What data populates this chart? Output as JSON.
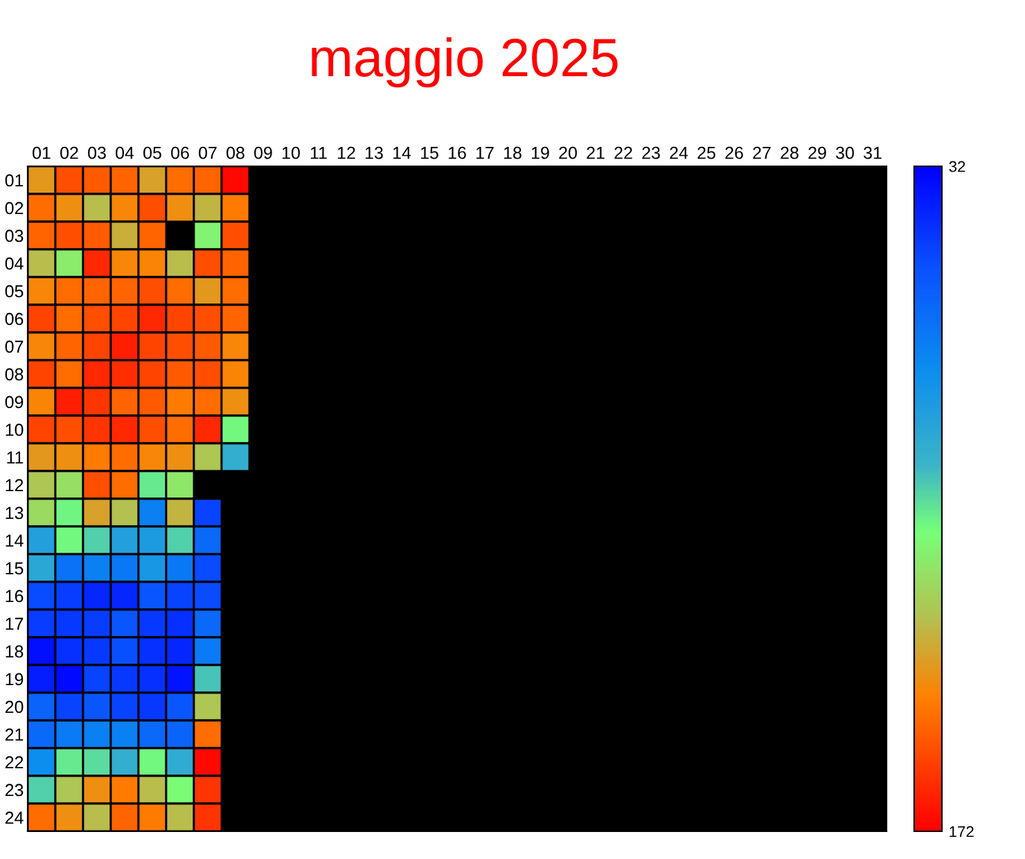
{
  "chart_data": {
    "type": "heatmap",
    "title": "maggio 2025",
    "categories": [
      "01",
      "02",
      "03",
      "04",
      "05",
      "06",
      "07",
      "08",
      "09",
      "10",
      "11",
      "12",
      "13",
      "14",
      "15",
      "16",
      "17",
      "18",
      "19",
      "20",
      "21",
      "22",
      "23",
      "24",
      "25",
      "26",
      "27",
      "28",
      "29",
      "30",
      "31"
    ],
    "y_categories": [
      "01",
      "02",
      "03",
      "04",
      "05",
      "06",
      "07",
      "08",
      "09",
      "10",
      "11",
      "12",
      "13",
      "14",
      "15",
      "16",
      "17",
      "18",
      "19",
      "20",
      "21",
      "22",
      "23",
      "24"
    ],
    "cells": [
      [
        138,
        155,
        152,
        150,
        135,
        148,
        150,
        170,
        null,
        null,
        null,
        null,
        null,
        null,
        null,
        null,
        null,
        null,
        null,
        null,
        null,
        null,
        null,
        null,
        null,
        null,
        null,
        null,
        null,
        null,
        null
      ],
      [
        148,
        140,
        128,
        142,
        155,
        140,
        130,
        145,
        null,
        null,
        null,
        null,
        null,
        null,
        null,
        null,
        null,
        null,
        null,
        null,
        null,
        null,
        null,
        null,
        null,
        null,
        null,
        null,
        null,
        null,
        null
      ],
      [
        150,
        155,
        152,
        132,
        150,
        null,
        112,
        155,
        null,
        null,
        null,
        null,
        null,
        null,
        null,
        null,
        null,
        null,
        null,
        null,
        null,
        null,
        null,
        null,
        null,
        null,
        null,
        null,
        null,
        null,
        null
      ],
      [
        128,
        115,
        163,
        142,
        143,
        128,
        155,
        150,
        null,
        null,
        null,
        null,
        null,
        null,
        null,
        null,
        null,
        null,
        null,
        null,
        null,
        null,
        null,
        null,
        null,
        null,
        null,
        null,
        null,
        null,
        null
      ],
      [
        142,
        148,
        150,
        150,
        155,
        148,
        138,
        148,
        null,
        null,
        null,
        null,
        null,
        null,
        null,
        null,
        null,
        null,
        null,
        null,
        null,
        null,
        null,
        null,
        null,
        null,
        null,
        null,
        null,
        null,
        null
      ],
      [
        157,
        148,
        155,
        157,
        163,
        157,
        155,
        150,
        null,
        null,
        null,
        null,
        null,
        null,
        null,
        null,
        null,
        null,
        null,
        null,
        null,
        null,
        null,
        null,
        null,
        null,
        null,
        null,
        null,
        null,
        null
      ],
      [
        142,
        150,
        157,
        165,
        157,
        155,
        152,
        142,
        null,
        null,
        null,
        null,
        null,
        null,
        null,
        null,
        null,
        null,
        null,
        null,
        null,
        null,
        null,
        null,
        null,
        null,
        null,
        null,
        null,
        null,
        null
      ],
      [
        157,
        148,
        163,
        162,
        157,
        152,
        155,
        143,
        null,
        null,
        null,
        null,
        null,
        null,
        null,
        null,
        null,
        null,
        null,
        null,
        null,
        null,
        null,
        null,
        null,
        null,
        null,
        null,
        null,
        null,
        null
      ],
      [
        143,
        165,
        160,
        150,
        152,
        145,
        148,
        140,
        null,
        null,
        null,
        null,
        null,
        null,
        null,
        null,
        null,
        null,
        null,
        null,
        null,
        null,
        null,
        null,
        null,
        null,
        null,
        null,
        null,
        null,
        null
      ],
      [
        157,
        155,
        160,
        163,
        155,
        148,
        163,
        108,
        null,
        null,
        null,
        null,
        null,
        null,
        null,
        null,
        null,
        null,
        null,
        null,
        null,
        null,
        null,
        null,
        null,
        null,
        null,
        null,
        null,
        null,
        null
      ],
      [
        138,
        140,
        145,
        148,
        142,
        140,
        125,
        92,
        null,
        null,
        null,
        null,
        null,
        null,
        null,
        null,
        null,
        null,
        null,
        null,
        null,
        null,
        null,
        null,
        null,
        null,
        null,
        null,
        null,
        null,
        null
      ],
      [
        125,
        118,
        155,
        148,
        105,
        116,
        null,
        null,
        null,
        null,
        null,
        null,
        null,
        null,
        null,
        null,
        null,
        null,
        null,
        null,
        null,
        null,
        null,
        null,
        null,
        null,
        null,
        null,
        null,
        null,
        null
      ],
      [
        120,
        107,
        135,
        127,
        70,
        130,
        50,
        null,
        null,
        null,
        null,
        null,
        null,
        null,
        null,
        null,
        null,
        null,
        null,
        null,
        null,
        null,
        null,
        null,
        null,
        null,
        null,
        null,
        null,
        null,
        null
      ],
      [
        85,
        108,
        100,
        85,
        82,
        100,
        62,
        null,
        null,
        null,
        null,
        null,
        null,
        null,
        null,
        null,
        null,
        null,
        null,
        null,
        null,
        null,
        null,
        null,
        null,
        null,
        null,
        null,
        null,
        null,
        null
      ],
      [
        88,
        65,
        70,
        67,
        80,
        67,
        52,
        null,
        null,
        null,
        null,
        null,
        null,
        null,
        null,
        null,
        null,
        null,
        null,
        null,
        null,
        null,
        null,
        null,
        null,
        null,
        null,
        null,
        null,
        null,
        null
      ],
      [
        52,
        48,
        42,
        42,
        55,
        50,
        52,
        null,
        null,
        null,
        null,
        null,
        null,
        null,
        null,
        null,
        null,
        null,
        null,
        null,
        null,
        null,
        null,
        null,
        null,
        null,
        null,
        null,
        null,
        null,
        null
      ],
      [
        48,
        47,
        48,
        55,
        47,
        45,
        62,
        null,
        null,
        null,
        null,
        null,
        null,
        null,
        null,
        null,
        null,
        null,
        null,
        null,
        null,
        null,
        null,
        null,
        null,
        null,
        null,
        null,
        null,
        null,
        null
      ],
      [
        36,
        45,
        47,
        53,
        45,
        42,
        68,
        null,
        null,
        null,
        null,
        null,
        null,
        null,
        null,
        null,
        null,
        null,
        null,
        null,
        null,
        null,
        null,
        null,
        null,
        null,
        null,
        null,
        null,
        null,
        null
      ],
      [
        40,
        35,
        50,
        47,
        45,
        37,
        98,
        null,
        null,
        null,
        null,
        null,
        null,
        null,
        null,
        null,
        null,
        null,
        null,
        null,
        null,
        null,
        null,
        null,
        null,
        null,
        null,
        null,
        null,
        null,
        null
      ],
      [
        60,
        50,
        55,
        50,
        47,
        55,
        125,
        null,
        null,
        null,
        null,
        null,
        null,
        null,
        null,
        null,
        null,
        null,
        null,
        null,
        null,
        null,
        null,
        null,
        null,
        null,
        null,
        null,
        null,
        null,
        null
      ],
      [
        62,
        68,
        70,
        70,
        62,
        60,
        148,
        null,
        null,
        null,
        null,
        null,
        null,
        null,
        null,
        null,
        null,
        null,
        null,
        null,
        null,
        null,
        null,
        null,
        null,
        null,
        null,
        null,
        null,
        null,
        null
      ],
      [
        75,
        105,
        102,
        92,
        108,
        90,
        170,
        null,
        null,
        null,
        null,
        null,
        null,
        null,
        null,
        null,
        null,
        null,
        null,
        null,
        null,
        null,
        null,
        null,
        null,
        null,
        null,
        null,
        null,
        null,
        null
      ],
      [
        100,
        125,
        140,
        145,
        128,
        110,
        160,
        null,
        null,
        null,
        null,
        null,
        null,
        null,
        null,
        null,
        null,
        null,
        null,
        null,
        null,
        null,
        null,
        null,
        null,
        null,
        null,
        null,
        null,
        null,
        null
      ],
      [
        148,
        140,
        128,
        150,
        145,
        128,
        160,
        null,
        null,
        null,
        null,
        null,
        null,
        null,
        null,
        null,
        null,
        null,
        null,
        null,
        null,
        null,
        null,
        null,
        null,
        null,
        null,
        null,
        null,
        null,
        null
      ]
    ],
    "clim": [
      172,
      32
    ],
    "cticks": [
      32,
      172
    ]
  }
}
